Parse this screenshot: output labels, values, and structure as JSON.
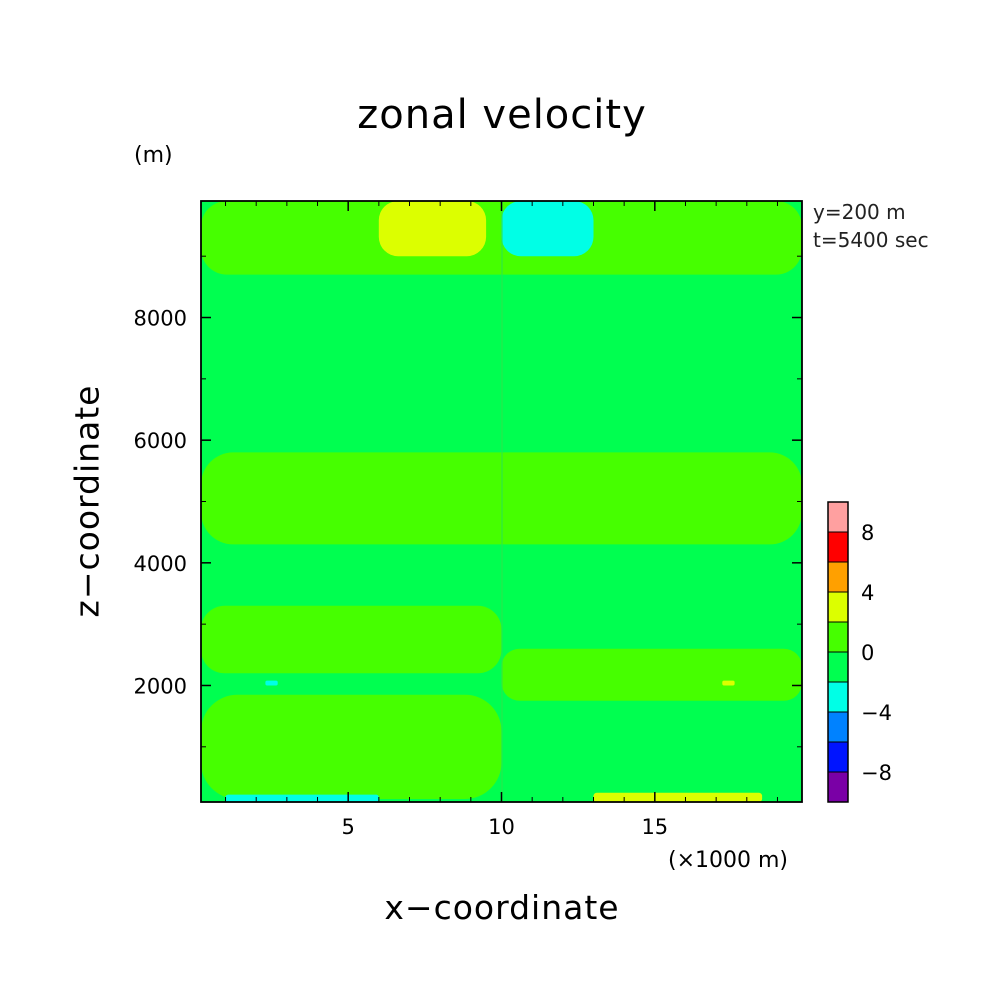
{
  "chart_data": {
    "type": "heatmap",
    "subtype": "filled-contour",
    "title": "zonal velocity",
    "xlabel": "x−coordinate",
    "ylabel": "z−coordinate",
    "x_unit": "(×1000 m)",
    "y_unit": "(m)",
    "annotations": [
      "y=200 m",
      "t=5400 sec"
    ],
    "xlim": [
      0.2,
      19.8
    ],
    "ylim": [
      100,
      9900
    ],
    "x_ticks": [
      5,
      10,
      15
    ],
    "y_ticks": [
      2000,
      4000,
      6000,
      8000
    ],
    "grid": false,
    "legend_placement": "right",
    "colorbar": {
      "range": [
        -10,
        10
      ],
      "step": 2,
      "labels": [
        8,
        4,
        0,
        -4,
        -8
      ],
      "bins": [
        {
          "from": -10,
          "to": -8,
          "color": "#7a00a6"
        },
        {
          "from": -8,
          "to": -6,
          "color": "#0014ff"
        },
        {
          "from": -6,
          "to": -4,
          "color": "#0082ff"
        },
        {
          "from": -4,
          "to": -2,
          "color": "#00ffe6"
        },
        {
          "from": -2,
          "to": 0,
          "color": "#00ff50"
        },
        {
          "from": 0,
          "to": 2,
          "color": "#46ff00"
        },
        {
          "from": 2,
          "to": 4,
          "color": "#dcff00"
        },
        {
          "from": 4,
          "to": 6,
          "color": "#ffa000"
        },
        {
          "from": 6,
          "to": 8,
          "color": "#ff0000"
        },
        {
          "from": 8,
          "to": 10,
          "color": "#ffa0a0"
        }
      ]
    },
    "regions": [
      {
        "level": "0 to 2",
        "color": "#46ff00",
        "x": [
          0.2,
          10
        ],
        "z": [
          150,
          1850
        ]
      },
      {
        "level": "0 to 2",
        "color": "#46ff00",
        "x": [
          0.2,
          10
        ],
        "z": [
          2200,
          3300
        ]
      },
      {
        "level": "0 to 2",
        "color": "#46ff00",
        "x": [
          10,
          19.8
        ],
        "z": [
          1750,
          2600
        ]
      },
      {
        "level": "0 to 2",
        "color": "#46ff00",
        "x": [
          0.2,
          19.8
        ],
        "z": [
          4300,
          5800
        ]
      },
      {
        "level": "0 to 2",
        "color": "#46ff00",
        "x": [
          0.2,
          19.8
        ],
        "z": [
          8700,
          9900
        ]
      },
      {
        "level": "2 to 4",
        "color": "#dcff00",
        "x": [
          6,
          9.5
        ],
        "z": [
          9000,
          9900
        ]
      },
      {
        "level": "2 to 4",
        "color": "#dcff00",
        "x": [
          13,
          18.5
        ],
        "z": [
          100,
          250
        ]
      },
      {
        "level": "-4 to -2",
        "color": "#00ffe6",
        "x": [
          10,
          13
        ],
        "z": [
          9000,
          9900
        ]
      },
      {
        "level": "-4 to -2",
        "color": "#00ffe6",
        "x": [
          1,
          6
        ],
        "z": [
          100,
          220
        ]
      },
      {
        "level": "-4 to -2",
        "color": "#00ffe6",
        "x": [
          2.3,
          2.7
        ],
        "z": [
          2000,
          2080
        ]
      },
      {
        "level": "2 to 4",
        "color": "#dcff00",
        "x": [
          17.2,
          17.6
        ],
        "z": [
          2000,
          2080
        ]
      }
    ],
    "background_level": {
      "level": "-2 to 0",
      "color": "#00ff50"
    }
  }
}
